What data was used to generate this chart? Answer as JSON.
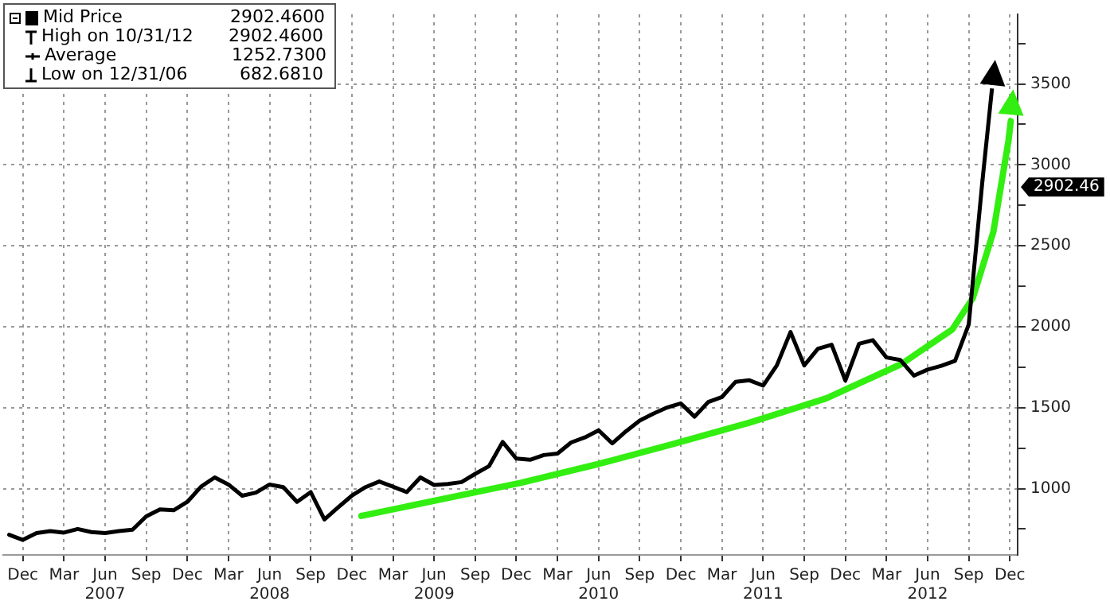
{
  "chart_data": {
    "type": "line",
    "legend": "top left",
    "grid": true,
    "line_style": "solid",
    "marker": "none",
    "xlim": [
      "2006-10-18",
      "2012-12-18"
    ],
    "xticks": [
      {
        "value": "2006-12",
        "label": "Dec"
      },
      {
        "value": "2007-03",
        "label": "Mar"
      },
      {
        "value": "2007-06",
        "label": "Jun\n2007"
      },
      {
        "value": "2007-09",
        "label": "Sep"
      },
      {
        "value": "2007-12",
        "label": "Dec"
      },
      {
        "value": "2008-03",
        "label": "Mar"
      },
      {
        "value": "2008-06",
        "label": "Jun\n2008"
      },
      {
        "value": "2008-09",
        "label": "Sep"
      },
      {
        "value": "2008-12",
        "label": "Dec"
      },
      {
        "value": "2009-03",
        "label": "Mar"
      },
      {
        "value": "2009-06",
        "label": "Jun\n2009"
      },
      {
        "value": "2009-09",
        "label": "Sep"
      },
      {
        "value": "2009-12",
        "label": "Dec"
      },
      {
        "value": "2010-03",
        "label": "Mar"
      },
      {
        "value": "2010-06",
        "label": "Jun\n2010"
      },
      {
        "value": "2010-09",
        "label": "Sep"
      },
      {
        "value": "2010-12",
        "label": "Dec"
      },
      {
        "value": "2011-03",
        "label": "Mar"
      },
      {
        "value": "2011-06",
        "label": "Jun\n2011"
      },
      {
        "value": "2011-09",
        "label": "Sep"
      },
      {
        "value": "2011-12",
        "label": "Dec"
      },
      {
        "value": "2012-03",
        "label": "Mar"
      },
      {
        "value": "2012-06",
        "label": "Jun\n2012"
      },
      {
        "value": "2012-09",
        "label": "Sep"
      },
      {
        "value": "2012-12",
        "label": "Dec"
      }
    ],
    "ylim": [
      590,
      3930
    ],
    "yticks": [
      {
        "value": 750,
        "label": null
      },
      1000,
      {
        "value": 1250,
        "label": null
      },
      1500,
      {
        "value": 1750,
        "label": null
      },
      2000,
      {
        "value": 2250,
        "label": null
      },
      2500,
      {
        "value": 2750,
        "label": null
      },
      3000,
      {
        "value": 3250,
        "label": null
      },
      3500,
      {
        "value": 3750,
        "label": null
      }
    ],
    "series": [
      {
        "name": "Mid Price",
        "color": "#000000",
        "x": [
          "2006-11",
          "2006-12",
          "2007-01",
          "2007-02",
          "2007-03",
          "2007-04",
          "2007-05",
          "2007-06",
          "2007-07",
          "2007-08",
          "2007-09",
          "2007-10",
          "2007-11",
          "2007-12",
          "2008-01",
          "2008-02",
          "2008-03",
          "2008-04",
          "2008-05",
          "2008-06",
          "2008-07",
          "2008-08",
          "2008-09",
          "2008-10",
          "2008-11",
          "2008-12",
          "2009-01",
          "2009-02",
          "2009-03",
          "2009-04",
          "2009-05",
          "2009-06",
          "2009-07",
          "2009-08",
          "2009-09",
          "2009-10",
          "2009-11",
          "2009-12",
          "2010-01",
          "2010-02",
          "2010-03",
          "2010-04",
          "2010-05",
          "2010-06",
          "2010-07",
          "2010-08",
          "2010-09",
          "2010-10",
          "2010-11",
          "2010-12",
          "2011-01",
          "2011-02",
          "2011-03",
          "2011-04",
          "2011-05",
          "2011-06",
          "2011-07",
          "2011-08",
          "2011-09",
          "2011-10",
          "2011-11",
          "2011-12",
          "2012-01",
          "2012-02",
          "2012-03",
          "2012-04",
          "2012-05",
          "2012-06",
          "2012-07",
          "2012-08",
          "2012-09",
          "2012-10"
        ],
        "values": [
          715,
          683,
          725,
          737,
          728,
          750,
          731,
          725,
          737,
          746,
          828,
          871,
          866,
          918,
          1012,
          1069,
          1025,
          956,
          975,
          1025,
          1009,
          918,
          978,
          809,
          884,
          956,
          1009,
          1044,
          1012,
          978,
          1069,
          1022,
          1028,
          1040,
          1091,
          1138,
          1288,
          1185,
          1178,
          1207,
          1216,
          1285,
          1316,
          1360,
          1279,
          1354,
          1420,
          1463,
          1501,
          1526,
          1444,
          1535,
          1566,
          1660,
          1669,
          1636,
          1761,
          1967,
          1761,
          1864,
          1889,
          1667,
          1895,
          1917,
          1810,
          1795,
          1698,
          1735,
          1758,
          1789,
          2014,
          2902.46
        ]
      },
      {
        "color": "#33ee11",
        "x": [
          "2008-12-22",
          "2009-12-10",
          "2010-05-28",
          "2010-11-13",
          "2011-05-01",
          "2011-10-19",
          "2012-04-04",
          "2012-07-25",
          "2012-09-10",
          "2012-10-25",
          "2012-11-28",
          "2012-12-03"
        ],
        "values": [
          831,
          1035,
          1150,
          1275,
          1407,
          1557,
          1770,
          1983,
          2177,
          2587,
          3150,
          3270
        ]
      }
    ],
    "annotations": [
      "2902.4600",
      "High on 10/31/12 2902.4600",
      "Average 1252.7300",
      "Low on 12/31/06 682.6810",
      "2902.46"
    ]
  }
}
